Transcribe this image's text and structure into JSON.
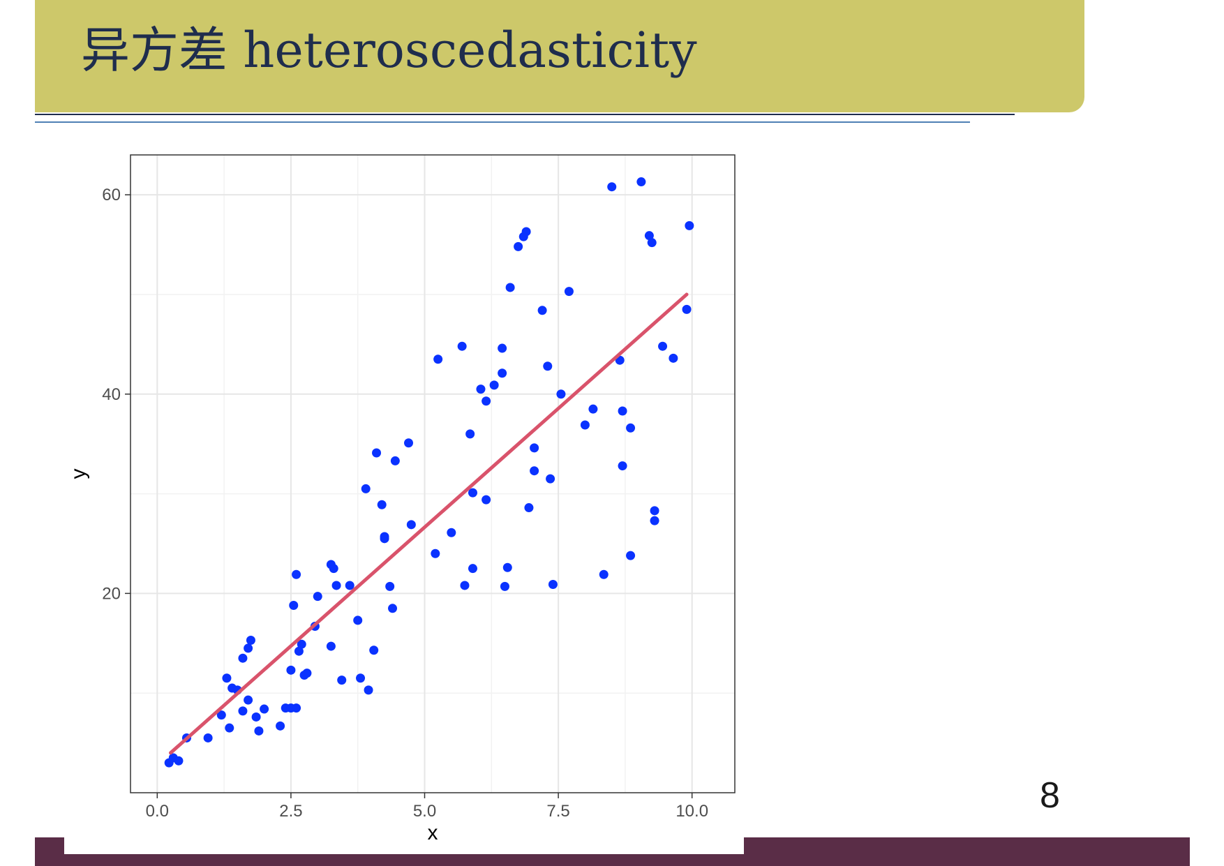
{
  "slide": {
    "title": "异方差 heteroscedasticity",
    "page_number": "8"
  },
  "colors": {
    "title_bar": "#cdc86a",
    "title_text": "#1f2d4d",
    "footer_bar": "#5a2d47",
    "points": "#0a32ff",
    "fit_line": "#d9536b"
  },
  "chart_data": {
    "type": "scatter",
    "title": "",
    "xlabel": "x",
    "ylabel": "y",
    "xlim": [
      -0.5,
      10.8
    ],
    "ylim": [
      0,
      64
    ],
    "x_ticks": [
      0.0,
      2.5,
      5.0,
      7.5,
      10.0
    ],
    "x_tick_labels": [
      "0.0",
      "2.5",
      "5.0",
      "7.5",
      "10.0"
    ],
    "y_ticks": [
      20,
      40,
      60
    ],
    "y_tick_labels": [
      "20",
      "40",
      "60"
    ],
    "grid": true,
    "legend": "none",
    "fit_line": {
      "x": [
        0.25,
        9.9
      ],
      "y": [
        4,
        50
      ]
    },
    "points": [
      [
        0.22,
        3
      ],
      [
        0.3,
        3.5
      ],
      [
        0.4,
        3.2
      ],
      [
        0.55,
        5.5
      ],
      [
        0.95,
        5.5
      ],
      [
        1.2,
        7.8
      ],
      [
        1.3,
        11.5
      ],
      [
        1.35,
        6.5
      ],
      [
        1.4,
        10.5
      ],
      [
        1.5,
        10.3
      ],
      [
        1.6,
        13.5
      ],
      [
        1.6,
        8.2
      ],
      [
        1.7,
        9.3
      ],
      [
        1.7,
        14.5
      ],
      [
        1.75,
        15.3
      ],
      [
        1.85,
        7.6
      ],
      [
        1.9,
        6.2
      ],
      [
        2.0,
        8.4
      ],
      [
        2.3,
        6.7
      ],
      [
        2.4,
        8.5
      ],
      [
        2.5,
        8.5
      ],
      [
        2.5,
        12.3
      ],
      [
        2.55,
        18.8
      ],
      [
        2.6,
        21.9
      ],
      [
        2.6,
        8.5
      ],
      [
        2.65,
        14.2
      ],
      [
        2.7,
        14.9
      ],
      [
        2.75,
        11.8
      ],
      [
        2.8,
        12.0
      ],
      [
        2.95,
        16.7
      ],
      [
        3.0,
        19.7
      ],
      [
        3.25,
        14.7
      ],
      [
        3.25,
        22.9
      ],
      [
        3.3,
        22.5
      ],
      [
        3.35,
        20.8
      ],
      [
        3.45,
        11.3
      ],
      [
        3.6,
        20.8
      ],
      [
        3.75,
        17.3
      ],
      [
        3.8,
        11.5
      ],
      [
        3.9,
        30.5
      ],
      [
        3.95,
        10.3
      ],
      [
        4.05,
        14.3
      ],
      [
        4.1,
        34.1
      ],
      [
        4.2,
        28.9
      ],
      [
        4.25,
        25.7
      ],
      [
        4.25,
        25.5
      ],
      [
        4.35,
        20.7
      ],
      [
        4.4,
        18.5
      ],
      [
        4.45,
        33.3
      ],
      [
        4.7,
        35.1
      ],
      [
        4.75,
        26.9
      ],
      [
        5.2,
        24.0
      ],
      [
        5.25,
        43.5
      ],
      [
        5.5,
        26.1
      ],
      [
        5.7,
        44.8
      ],
      [
        5.75,
        20.8
      ],
      [
        5.85,
        36.0
      ],
      [
        5.9,
        30.1
      ],
      [
        5.9,
        22.5
      ],
      [
        6.05,
        40.5
      ],
      [
        6.15,
        39.3
      ],
      [
        6.15,
        29.4
      ],
      [
        6.3,
        40.9
      ],
      [
        6.45,
        44.6
      ],
      [
        6.45,
        42.1
      ],
      [
        6.5,
        20.7
      ],
      [
        6.55,
        22.6
      ],
      [
        6.6,
        50.7
      ],
      [
        6.75,
        54.8
      ],
      [
        6.85,
        55.8
      ],
      [
        6.9,
        56.3
      ],
      [
        6.95,
        28.6
      ],
      [
        7.05,
        34.6
      ],
      [
        7.05,
        32.3
      ],
      [
        7.2,
        48.4
      ],
      [
        7.3,
        42.8
      ],
      [
        7.35,
        31.5
      ],
      [
        7.4,
        20.9
      ],
      [
        7.55,
        40.0
      ],
      [
        7.7,
        50.3
      ],
      [
        8.0,
        36.9
      ],
      [
        8.15,
        38.5
      ],
      [
        8.35,
        21.9
      ],
      [
        8.5,
        60.8
      ],
      [
        8.65,
        43.4
      ],
      [
        8.7,
        38.3
      ],
      [
        8.7,
        32.8
      ],
      [
        8.85,
        23.8
      ],
      [
        8.85,
        36.6
      ],
      [
        9.05,
        61.3
      ],
      [
        9.2,
        55.9
      ],
      [
        9.25,
        55.2
      ],
      [
        9.3,
        28.3
      ],
      [
        9.3,
        27.3
      ],
      [
        9.45,
        44.8
      ],
      [
        9.65,
        43.6
      ],
      [
        9.9,
        48.5
      ],
      [
        9.95,
        56.9
      ]
    ]
  }
}
